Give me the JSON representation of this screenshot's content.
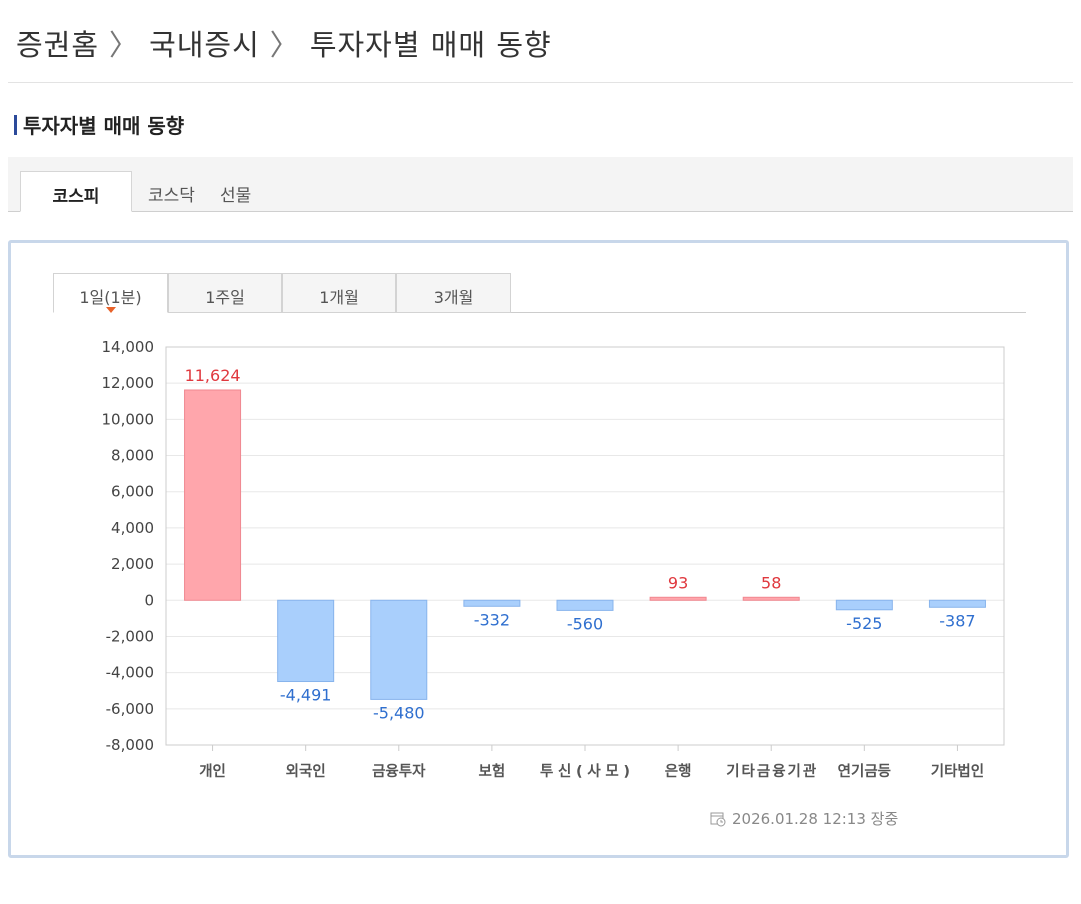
{
  "breadcrumb": [
    "증권홈",
    "국내증시",
    "투자자별 매매 동향"
  ],
  "breadcrumb_sep": "〉",
  "section_title": "투자자별 매매 동향",
  "market_tabs": [
    {
      "label": "코스피",
      "active": true
    },
    {
      "label": "코스닥"
    },
    {
      "label": "선물"
    }
  ],
  "period_tabs": [
    {
      "label": "1일(1분)",
      "active": true
    },
    {
      "label": "1주일"
    },
    {
      "label": "1개월"
    },
    {
      "label": "3개월"
    }
  ],
  "timestamp": "2026.01.28 12:13 장중",
  "colors": {
    "positive_text": "#e0383e",
    "negative_text": "#2f6fcf",
    "positive_fill": "#ffa6ac",
    "negative_fill": "#a9cffc"
  },
  "chart_data": {
    "type": "bar",
    "categories": [
      "개인",
      "외국인",
      "금융투자",
      "보험",
      "투신(사모)",
      "은행",
      "기타금융기관",
      "연기금등",
      "기타법인"
    ],
    "values": [
      11624,
      -4491,
      -5480,
      -332,
      -560,
      93,
      58,
      -525,
      -387
    ],
    "value_labels": [
      "11,624",
      "-4,491",
      "-5,480",
      "-332",
      "-560",
      "93",
      "58",
      "-525",
      "-387"
    ],
    "ylim": [
      -8000,
      14000
    ],
    "yticks": [
      14000,
      12000,
      10000,
      8000,
      6000,
      4000,
      2000,
      0,
      -2000,
      -4000,
      -6000,
      -8000
    ],
    "ytick_labels": [
      "14,000",
      "12,000",
      "10,000",
      "8,000",
      "6,000",
      "4,000",
      "2,000",
      "0",
      "-2,000",
      "-4,000",
      "-6,000",
      "-8,000"
    ],
    "grid": true,
    "title": "",
    "xlabel": "",
    "ylabel": ""
  }
}
